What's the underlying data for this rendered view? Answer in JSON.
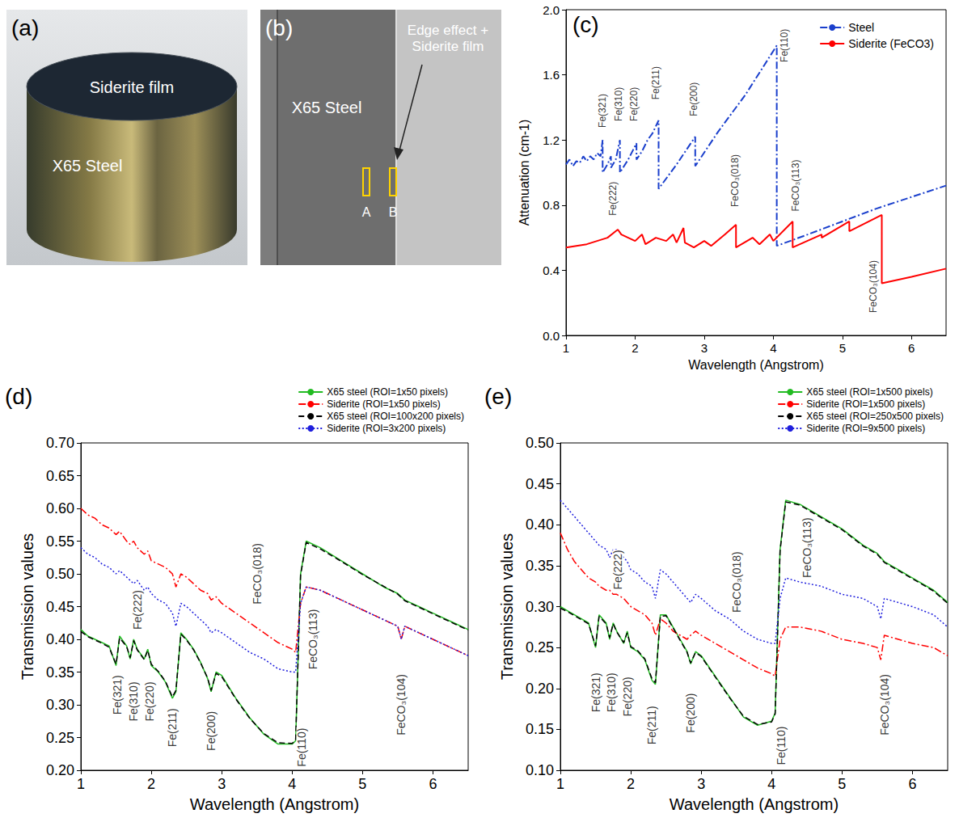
{
  "image_panels": [
    {
      "letter": "(a)",
      "film_label": "Siderite film",
      "substrate_label": "X65 Steel"
    },
    {
      "letter": "(b)",
      "region_label": "X65 Steel",
      "arrow_label": "Edge effect + Siderite film",
      "roi_labels": [
        "A",
        "B"
      ]
    }
  ],
  "chart_data": [
    {
      "type": "line",
      "letter": "(c)",
      "xlabel": "Wavelength (Angstrom)",
      "ylabel": "Attenuation (cm-1)",
      "xlim": [
        1,
        6.5
      ],
      "xticks": [
        1,
        2,
        3,
        4,
        5,
        6
      ],
      "ylim": [
        0,
        2
      ],
      "yticks": [
        {
          "value": 0,
          "label": "0.0"
        },
        0.4,
        0.8,
        1.2,
        1.6,
        {
          "value": 2,
          "label": "2.0"
        }
      ],
      "grid": false,
      "legend": "top-right",
      "series": [
        {
          "name": "Steel",
          "color": "#1a3fcc",
          "line_style": "dashdot",
          "x": [
            1.0,
            1.05,
            1.1,
            1.15,
            1.2,
            1.25,
            1.3,
            1.35,
            1.4,
            1.45,
            1.5,
            1.53,
            1.53,
            1.6,
            1.65,
            1.65,
            1.72,
            1.78,
            1.78,
            1.9,
            2.02,
            2.02,
            2.1,
            2.18,
            2.25,
            2.34,
            2.34,
            2.6,
            2.87,
            2.87,
            3.2,
            3.6,
            4.05,
            4.05,
            4.5,
            5.0,
            5.5,
            6.0,
            6.5
          ],
          "values": [
            1.05,
            1.08,
            1.04,
            1.07,
            1.06,
            1.1,
            1.07,
            1.1,
            1.08,
            1.12,
            1.1,
            1.2,
            1.0,
            1.05,
            1.1,
            1.03,
            1.08,
            1.2,
            1.0,
            1.08,
            1.18,
            1.08,
            1.13,
            1.2,
            1.24,
            1.32,
            0.9,
            1.05,
            1.22,
            1.04,
            1.25,
            1.48,
            1.78,
            0.55,
            0.62,
            0.7,
            0.78,
            0.85,
            0.92
          ]
        },
        {
          "name": "Siderite (FeCO3)",
          "color": "#ff0000",
          "line_style": "solid",
          "x": [
            1.0,
            1.3,
            1.6,
            1.75,
            1.8,
            2.0,
            2.1,
            2.15,
            2.3,
            2.45,
            2.55,
            2.6,
            2.7,
            2.72,
            2.85,
            3.0,
            3.1,
            3.3,
            3.46,
            3.46,
            3.7,
            3.8,
            3.95,
            4.0,
            4.28,
            4.28,
            4.7,
            4.7,
            5.1,
            5.1,
            5.57,
            5.57,
            6.0,
            6.5
          ],
          "values": [
            0.54,
            0.56,
            0.6,
            0.65,
            0.62,
            0.58,
            0.62,
            0.56,
            0.6,
            0.58,
            0.62,
            0.57,
            0.66,
            0.57,
            0.54,
            0.58,
            0.55,
            0.62,
            0.68,
            0.54,
            0.6,
            0.56,
            0.62,
            0.58,
            0.7,
            0.54,
            0.62,
            0.6,
            0.7,
            0.64,
            0.74,
            0.32,
            0.36,
            0.41
          ]
        }
      ],
      "annotations": [
        {
          "text": "Fe(321)",
          "x": 1.53,
          "y": 1.38
        },
        {
          "text": "Fe(310)",
          "x": 1.76,
          "y": 1.42
        },
        {
          "text": "Fe(220)",
          "x": 1.98,
          "y": 1.42
        },
        {
          "text": "Fe(211)",
          "x": 2.3,
          "y": 1.55
        },
        {
          "text": "Fe(200)",
          "x": 2.85,
          "y": 1.45
        },
        {
          "text": "Fe(110)",
          "x": 4.16,
          "y": 1.78
        },
        {
          "text": "Fe(222)",
          "x": 1.68,
          "y": 0.84
        },
        {
          "text": "FeCO₃(018)",
          "x": 3.45,
          "y": 0.95
        },
        {
          "text": "FeCO₃(113)",
          "x": 4.32,
          "y": 0.92
        },
        {
          "text": "FeCO₃(104)",
          "x": 5.45,
          "y": 0.3
        }
      ]
    },
    {
      "type": "line",
      "letter": "(d)",
      "xlabel": "Wavelength (Angstrom)",
      "ylabel": "Transmission values",
      "xlim": [
        1,
        6.5
      ],
      "xticks": [
        1,
        2,
        3,
        4,
        5,
        6
      ],
      "ylim": [
        0.2,
        0.7
      ],
      "yticks": [
        {
          "value": 0.2,
          "label": "0.20"
        },
        0.25,
        {
          "value": 0.3,
          "label": "0.30"
        },
        0.35,
        {
          "value": 0.4,
          "label": "0.40"
        },
        0.45,
        {
          "value": 0.5,
          "label": "0.50"
        },
        0.55,
        {
          "value": 0.6,
          "label": "0.60"
        },
        0.65,
        {
          "value": 0.7,
          "label": "0.70"
        }
      ],
      "grid": false,
      "legend": "top-right",
      "x": [
        1.0,
        1.1,
        1.2,
        1.3,
        1.4,
        1.5,
        1.55,
        1.65,
        1.7,
        1.75,
        1.8,
        1.9,
        1.95,
        2.0,
        2.1,
        2.2,
        2.3,
        2.35,
        2.42,
        2.5,
        2.6,
        2.7,
        2.8,
        2.85,
        2.92,
        3.0,
        3.2,
        3.4,
        3.6,
        3.8,
        4.0,
        4.05,
        4.12,
        4.2,
        4.4,
        4.7,
        5.0,
        5.3,
        5.5,
        5.55,
        5.6,
        5.8,
        6.0,
        6.3,
        6.5
      ],
      "series": [
        {
          "name": "X65 steel (ROI=1x50 pixels)",
          "color": "#22bb22",
          "line_style": "solid",
          "values": [
            0.415,
            0.405,
            0.4,
            0.395,
            0.39,
            0.36,
            0.405,
            0.39,
            0.37,
            0.4,
            0.385,
            0.37,
            0.385,
            0.36,
            0.35,
            0.335,
            0.31,
            0.32,
            0.41,
            0.4,
            0.385,
            0.365,
            0.34,
            0.32,
            0.35,
            0.345,
            0.31,
            0.28,
            0.255,
            0.24,
            0.24,
            0.245,
            0.5,
            0.55,
            0.54,
            0.52,
            0.5,
            0.48,
            0.47,
            0.465,
            0.46,
            0.45,
            0.44,
            0.425,
            0.415
          ]
        },
        {
          "name": "Siderite (ROI=1x50 pixels)",
          "color": "#ff0000",
          "line_style": "dashdot",
          "values": [
            0.6,
            0.59,
            0.585,
            0.575,
            0.57,
            0.56,
            0.565,
            0.55,
            0.545,
            0.55,
            0.54,
            0.53,
            0.535,
            0.52,
            0.515,
            0.51,
            0.5,
            0.48,
            0.5,
            0.495,
            0.485,
            0.475,
            0.47,
            0.46,
            0.465,
            0.455,
            0.44,
            0.425,
            0.41,
            0.395,
            0.385,
            0.38,
            0.455,
            0.48,
            0.475,
            0.46,
            0.445,
            0.43,
            0.42,
            0.4,
            0.42,
            0.41,
            0.4,
            0.385,
            0.375
          ]
        },
        {
          "name": "X65 steel (ROI=100x200 pixels)",
          "color": "#000000",
          "line_style": "dashed",
          "values": [
            0.412,
            0.404,
            0.399,
            0.394,
            0.388,
            0.362,
            0.402,
            0.389,
            0.372,
            0.398,
            0.384,
            0.369,
            0.383,
            0.362,
            0.351,
            0.336,
            0.312,
            0.322,
            0.408,
            0.399,
            0.384,
            0.364,
            0.341,
            0.322,
            0.348,
            0.343,
            0.309,
            0.279,
            0.256,
            0.242,
            0.241,
            0.246,
            0.498,
            0.548,
            0.538,
            0.519,
            0.499,
            0.481,
            0.469,
            0.464,
            0.459,
            0.449,
            0.439,
            0.424,
            0.414
          ]
        },
        {
          "name": "Siderite (ROI=3x200 pixels)",
          "color": "#1f1fdd",
          "line_style": "dotted",
          "values": [
            0.54,
            0.53,
            0.525,
            0.515,
            0.51,
            0.5,
            0.505,
            0.495,
            0.49,
            0.485,
            0.49,
            0.475,
            0.48,
            0.47,
            0.46,
            0.455,
            0.44,
            0.42,
            0.455,
            0.45,
            0.44,
            0.43,
            0.42,
            0.41,
            0.415,
            0.41,
            0.395,
            0.38,
            0.37,
            0.355,
            0.35,
            0.35,
            0.455,
            0.48,
            0.475,
            0.46,
            0.445,
            0.43,
            0.42,
            0.4,
            0.42,
            0.41,
            0.4,
            0.385,
            0.375
          ]
        }
      ],
      "annotations": [
        {
          "text": "Fe(321)",
          "x": 1.52,
          "y": 0.315
        },
        {
          "text": "Fe(310)",
          "x": 1.75,
          "y": 0.305
        },
        {
          "text": "Fe(220)",
          "x": 1.98,
          "y": 0.305
        },
        {
          "text": "Fe(222)",
          "x": 1.8,
          "y": 0.445
        },
        {
          "text": "Fe(211)",
          "x": 2.3,
          "y": 0.265
        },
        {
          "text": "Fe(200)",
          "x": 2.85,
          "y": 0.26
        },
        {
          "text": "Fe(110)",
          "x": 4.14,
          "y": 0.235
        },
        {
          "text": "FeCO₃(018)",
          "x": 3.5,
          "y": 0.5
        },
        {
          "text": "FeCO₃(113)",
          "x": 4.3,
          "y": 0.4
        },
        {
          "text": "FeCO₃(104)",
          "x": 5.55,
          "y": 0.3
        }
      ]
    },
    {
      "type": "line",
      "letter": "(e)",
      "xlabel": "Wavelength (Angstrom)",
      "ylabel": "Transmission values",
      "xlim": [
        1,
        6.5
      ],
      "xticks": [
        1,
        2,
        3,
        4,
        5,
        6
      ],
      "ylim": [
        0.1,
        0.5
      ],
      "yticks": [
        {
          "value": 0.1,
          "label": "0.10"
        },
        0.15,
        {
          "value": 0.2,
          "label": "0.20"
        },
        0.25,
        {
          "value": 0.3,
          "label": "0.30"
        },
        0.35,
        {
          "value": 0.4,
          "label": "0.40"
        },
        0.45,
        {
          "value": 0.5,
          "label": "0.50"
        }
      ],
      "grid": false,
      "legend": "top-right",
      "x": [
        1.0,
        1.1,
        1.2,
        1.3,
        1.4,
        1.5,
        1.55,
        1.65,
        1.7,
        1.75,
        1.8,
        1.9,
        1.95,
        2.0,
        2.1,
        2.2,
        2.3,
        2.35,
        2.42,
        2.5,
        2.6,
        2.7,
        2.8,
        2.85,
        2.92,
        3.0,
        3.2,
        3.4,
        3.6,
        3.8,
        4.0,
        4.05,
        4.12,
        4.2,
        4.4,
        4.7,
        5.0,
        5.3,
        5.5,
        5.55,
        5.6,
        5.8,
        6.0,
        6.3,
        6.5
      ],
      "series": [
        {
          "name": "X65 steel (ROI=1x500 pixels)",
          "color": "#22bb22",
          "line_style": "solid",
          "values": [
            0.3,
            0.295,
            0.29,
            0.285,
            0.28,
            0.25,
            0.29,
            0.28,
            0.26,
            0.28,
            0.27,
            0.255,
            0.27,
            0.25,
            0.245,
            0.235,
            0.21,
            0.205,
            0.29,
            0.29,
            0.275,
            0.26,
            0.245,
            0.23,
            0.245,
            0.24,
            0.215,
            0.19,
            0.165,
            0.155,
            0.16,
            0.17,
            0.37,
            0.43,
            0.425,
            0.41,
            0.395,
            0.375,
            0.365,
            0.36,
            0.355,
            0.345,
            0.335,
            0.32,
            0.305
          ]
        },
        {
          "name": "Siderite (ROI=1x500 pixels)",
          "color": "#ff0000",
          "line_style": "dashdot",
          "values": [
            0.39,
            0.37,
            0.355,
            0.345,
            0.335,
            0.33,
            0.325,
            0.32,
            0.32,
            0.315,
            0.315,
            0.31,
            0.305,
            0.3,
            0.295,
            0.29,
            0.28,
            0.265,
            0.285,
            0.28,
            0.27,
            0.265,
            0.26,
            0.265,
            0.27,
            0.265,
            0.255,
            0.245,
            0.235,
            0.225,
            0.218,
            0.215,
            0.26,
            0.275,
            0.275,
            0.27,
            0.26,
            0.255,
            0.25,
            0.235,
            0.265,
            0.26,
            0.255,
            0.25,
            0.24
          ]
        },
        {
          "name": "X65 steel (ROI=250x500 pixels)",
          "color": "#000000",
          "line_style": "dashed",
          "values": [
            0.298,
            0.294,
            0.289,
            0.284,
            0.279,
            0.252,
            0.288,
            0.279,
            0.262,
            0.279,
            0.269,
            0.256,
            0.268,
            0.251,
            0.246,
            0.236,
            0.212,
            0.207,
            0.288,
            0.289,
            0.274,
            0.259,
            0.244,
            0.231,
            0.244,
            0.239,
            0.214,
            0.189,
            0.166,
            0.156,
            0.159,
            0.169,
            0.368,
            0.428,
            0.424,
            0.409,
            0.394,
            0.374,
            0.364,
            0.359,
            0.354,
            0.344,
            0.334,
            0.319,
            0.304
          ]
        },
        {
          "name": "Siderite (ROI=9x500 pixels)",
          "color": "#1f1fdd",
          "line_style": "dotted",
          "values": [
            0.43,
            0.42,
            0.41,
            0.4,
            0.39,
            0.38,
            0.375,
            0.37,
            0.36,
            0.37,
            0.37,
            0.36,
            0.355,
            0.345,
            0.34,
            0.33,
            0.325,
            0.31,
            0.345,
            0.34,
            0.33,
            0.32,
            0.31,
            0.305,
            0.315,
            0.31,
            0.295,
            0.285,
            0.27,
            0.26,
            0.255,
            0.255,
            0.31,
            0.335,
            0.33,
            0.325,
            0.315,
            0.31,
            0.3,
            0.285,
            0.31,
            0.305,
            0.3,
            0.29,
            0.275
          ]
        }
      ],
      "annotations": [
        {
          "text": "Fe(321)",
          "x": 1.5,
          "y": 0.195
        },
        {
          "text": "Fe(310)",
          "x": 1.72,
          "y": 0.195
        },
        {
          "text": "Fe(220)",
          "x": 1.95,
          "y": 0.19
        },
        {
          "text": "Fe(222)",
          "x": 1.82,
          "y": 0.345
        },
        {
          "text": "Fe(211)",
          "x": 2.3,
          "y": 0.155
        },
        {
          "text": "Fe(200)",
          "x": 2.85,
          "y": 0.17
        },
        {
          "text": "Fe(110)",
          "x": 4.14,
          "y": 0.13
        },
        {
          "text": "FeCO₃(018)",
          "x": 3.5,
          "y": 0.33
        },
        {
          "text": "FeCO₃(113)",
          "x": 4.5,
          "y": 0.372
        },
        {
          "text": "FeCO₃(104)",
          "x": 5.6,
          "y": 0.18
        }
      ]
    }
  ]
}
